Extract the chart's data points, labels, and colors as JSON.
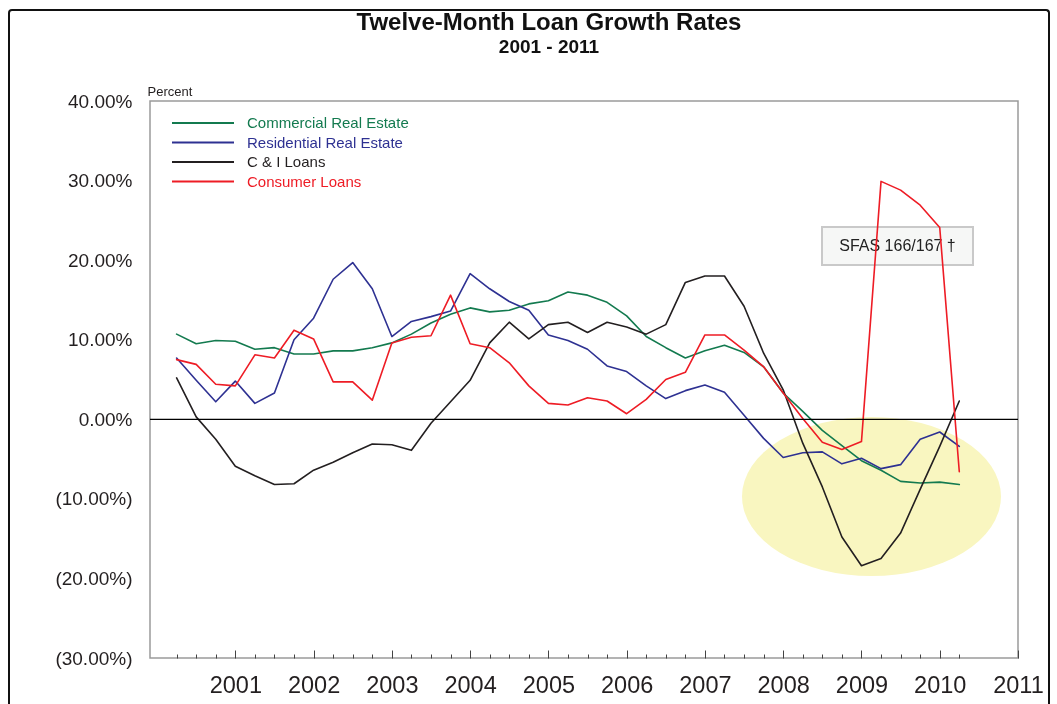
{
  "chart_data": {
    "type": "line",
    "title": "Twelve-Month Loan Growth Rates",
    "subtitle": "2001 - 2011",
    "ylabel": "Percent",
    "annotations": [
      "SFAS 166/167 †"
    ],
    "x": [
      2000.25,
      2000.5,
      2000.75,
      2001,
      2001.25,
      2001.5,
      2001.75,
      2002,
      2002.25,
      2002.5,
      2002.75,
      2003,
      2003.25,
      2003.5,
      2003.75,
      2004,
      2004.25,
      2004.5,
      2004.75,
      2005,
      2005.25,
      2005.5,
      2005.75,
      2006,
      2006.25,
      2006.5,
      2006.75,
      2007,
      2007.25,
      2007.5,
      2007.75,
      2008,
      2008.25,
      2008.5,
      2008.75,
      2009,
      2009.25,
      2009.5,
      2009.75,
      2010,
      2010.25
    ],
    "series": [
      {
        "name": "Commercial Real Estate",
        "color": "#137a4f",
        "values": [
          10.7,
          9.5,
          9.9,
          9.8,
          8.8,
          9.0,
          8.2,
          8.2,
          8.6,
          8.6,
          9.0,
          9.6,
          10.7,
          12.1,
          13.2,
          14.0,
          13.5,
          13.7,
          14.5,
          14.9,
          16.0,
          15.6,
          14.7,
          13.0,
          10.4,
          9.0,
          7.7,
          8.6,
          9.3,
          8.4,
          6.6,
          3.3,
          1.0,
          -1.4,
          -3.3,
          -5.2,
          -6.4,
          -7.8,
          -8.0,
          -7.9,
          -8.2
        ]
      },
      {
        "name": "Residential Real Estate",
        "color": "#2e3192",
        "values": [
          7.7,
          4.9,
          2.2,
          4.8,
          2.0,
          3.3,
          10.0,
          12.7,
          17.6,
          19.7,
          16.4,
          10.4,
          12.3,
          12.9,
          13.6,
          18.3,
          16.4,
          14.8,
          13.7,
          10.6,
          9.9,
          8.8,
          6.7,
          6.0,
          4.2,
          2.6,
          3.6,
          4.3,
          3.4,
          0.5,
          -2.4,
          -4.8,
          -4.2,
          -4.1,
          -5.6,
          -4.9,
          -6.2,
          -5.7,
          -2.5,
          -1.6,
          -3.4
        ]
      },
      {
        "name": "C & I Loans",
        "color": "#231f20",
        "values": [
          5.2,
          0.3,
          -2.5,
          -5.9,
          -7.1,
          -8.2,
          -8.1,
          -6.4,
          -5.4,
          -4.2,
          -3.1,
          -3.2,
          -3.9,
          -0.5,
          2.2,
          4.9,
          9.6,
          12.2,
          10.1,
          11.9,
          12.2,
          10.9,
          12.2,
          11.6,
          10.7,
          11.9,
          17.2,
          18.0,
          18.0,
          14.2,
          8.3,
          3.7,
          -3.0,
          -8.5,
          -14.8,
          -18.4,
          -17.5,
          -14.3,
          -8.8,
          -3.4,
          2.3
        ]
      },
      {
        "name": "Consumer Loans",
        "color": "#ee1c25",
        "values": [
          7.5,
          6.9,
          4.4,
          4.2,
          8.1,
          7.7,
          11.2,
          10.1,
          4.7,
          4.7,
          2.4,
          9.6,
          10.3,
          10.5,
          15.6,
          9.5,
          9.0,
          7.1,
          4.2,
          2.0,
          1.8,
          2.7,
          2.3,
          0.7,
          2.5,
          5.0,
          5.9,
          10.6,
          10.6,
          8.7,
          6.6,
          3.3,
          0.1,
          -2.9,
          -3.8,
          -2.8,
          29.9,
          28.8,
          26.9,
          24.1,
          -6.6
        ]
      }
    ],
    "xlim": [
      1999.91,
      2011
    ],
    "xticks": [
      {
        "value": 2000.25,
        "label": null
      },
      {
        "value": 2000.5,
        "label": null
      },
      {
        "value": 2000.75,
        "label": null
      },
      2001,
      {
        "value": 2001.25,
        "label": null
      },
      {
        "value": 2001.5,
        "label": null
      },
      {
        "value": 2001.75,
        "label": null
      },
      2002,
      {
        "value": 2002.25,
        "label": null
      },
      {
        "value": 2002.5,
        "label": null
      },
      {
        "value": 2002.75,
        "label": null
      },
      2003,
      {
        "value": 2003.25,
        "label": null
      },
      {
        "value": 2003.5,
        "label": null
      },
      {
        "value": 2003.75,
        "label": null
      },
      2004,
      {
        "value": 2004.25,
        "label": null
      },
      {
        "value": 2004.5,
        "label": null
      },
      {
        "value": 2004.75,
        "label": null
      },
      2005,
      {
        "value": 2005.25,
        "label": null
      },
      {
        "value": 2005.5,
        "label": null
      },
      {
        "value": 2005.75,
        "label": null
      },
      2006,
      {
        "value": 2006.25,
        "label": null
      },
      {
        "value": 2006.5,
        "label": null
      },
      {
        "value": 2006.75,
        "label": null
      },
      2007,
      {
        "value": 2007.25,
        "label": null
      },
      {
        "value": 2007.5,
        "label": null
      },
      {
        "value": 2007.75,
        "label": null
      },
      2008,
      {
        "value": 2008.25,
        "label": null
      },
      {
        "value": 2008.5,
        "label": null
      },
      {
        "value": 2008.75,
        "label": null
      },
      2009,
      {
        "value": 2009.25,
        "label": null
      },
      {
        "value": 2009.5,
        "label": null
      },
      {
        "value": 2009.75,
        "label": null
      },
      2010,
      {
        "value": 2010.25,
        "label": null
      },
      2011
    ],
    "ylim": [
      -30,
      40
    ],
    "yticks": [
      {
        "value": 40,
        "label": "40.00%"
      },
      {
        "value": 30,
        "label": "30.00%"
      },
      {
        "value": 20,
        "label": "20.00%"
      },
      {
        "value": 10,
        "label": "10.00%"
      },
      {
        "value": 0,
        "label": "0.00%"
      },
      {
        "value": -10,
        "label": "(10.00%)"
      },
      {
        "value": -20,
        "label": "(20.00%)"
      },
      {
        "value": -30,
        "label": "(30.00%)"
      }
    ],
    "ref_lines": [
      {
        "axis": "y",
        "value": 0,
        "color": "#000000"
      }
    ],
    "legend": "top left",
    "line_style": "solid"
  }
}
